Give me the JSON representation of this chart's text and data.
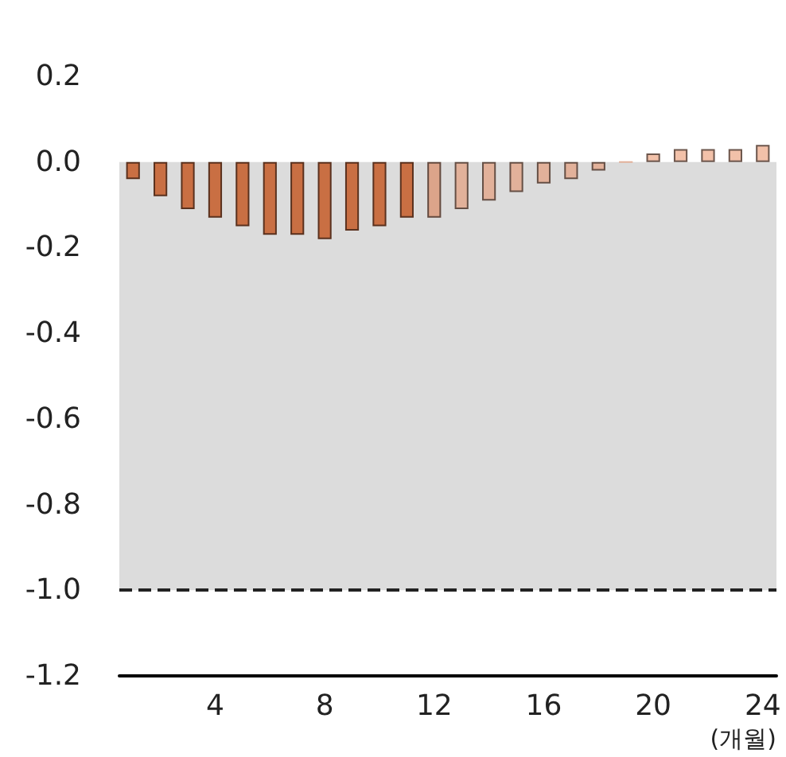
{
  "chart_data": {
    "type": "bar",
    "categories": [
      null,
      null,
      null,
      "4",
      null,
      null,
      null,
      "8",
      null,
      null,
      null,
      "12",
      null,
      null,
      null,
      "16",
      null,
      null,
      null,
      "20",
      null,
      null,
      null,
      "24"
    ],
    "values": [
      -0.04,
      -0.08,
      -0.11,
      -0.13,
      -0.15,
      -0.17,
      -0.17,
      -0.18,
      -0.16,
      -0.15,
      -0.13,
      -0.13,
      -0.11,
      -0.09,
      -0.07,
      -0.05,
      -0.04,
      -0.02,
      0.0,
      0.02,
      0.03,
      0.03,
      0.03,
      0.04
    ],
    "colors": [
      "#c96f43",
      "#c96f43",
      "#c96f43",
      "#c96f43",
      "#c96f43",
      "#c96f43",
      "#c96f43",
      "#c96f43",
      "#c96f43",
      "#c96f43",
      "#c96f43",
      "#dca48a",
      "#e2b19a",
      "#e2b19a",
      "#e2b19a",
      "#e2b19a",
      "#e2b19a",
      "#e2b19a",
      "#e2b19a",
      "#f2c1a9",
      "#f2c1a9",
      "#f2c1a9",
      "#f2c1a9",
      "#f2c1a9"
    ],
    "xlabel": "(개월)",
    "ylim": [
      -1.2,
      0.2
    ],
    "yticks": [
      {
        "value": -1.2,
        "label": "-1.2"
      },
      {
        "value": -1.0,
        "label": "-1.0"
      },
      {
        "value": -0.8,
        "label": "-0.8"
      },
      {
        "value": -0.6,
        "label": "-0.6"
      },
      {
        "value": -0.4,
        "label": "-0.4"
      },
      {
        "value": -0.2,
        "label": "-0.2"
      },
      {
        "value": 0,
        "label": "0.0"
      },
      {
        "value": 0.2,
        "label": "0.2"
      }
    ],
    "ref_lines": [
      {
        "axis": "y",
        "value": -1.0,
        "label": null,
        "color": "#222222",
        "line_style": "dashed"
      }
    ],
    "bands": [
      {
        "axis": "y",
        "from": -1.0,
        "to": 0.0,
        "label": null,
        "color": "#dcdcdc"
      }
    ],
    "grid": false
  }
}
